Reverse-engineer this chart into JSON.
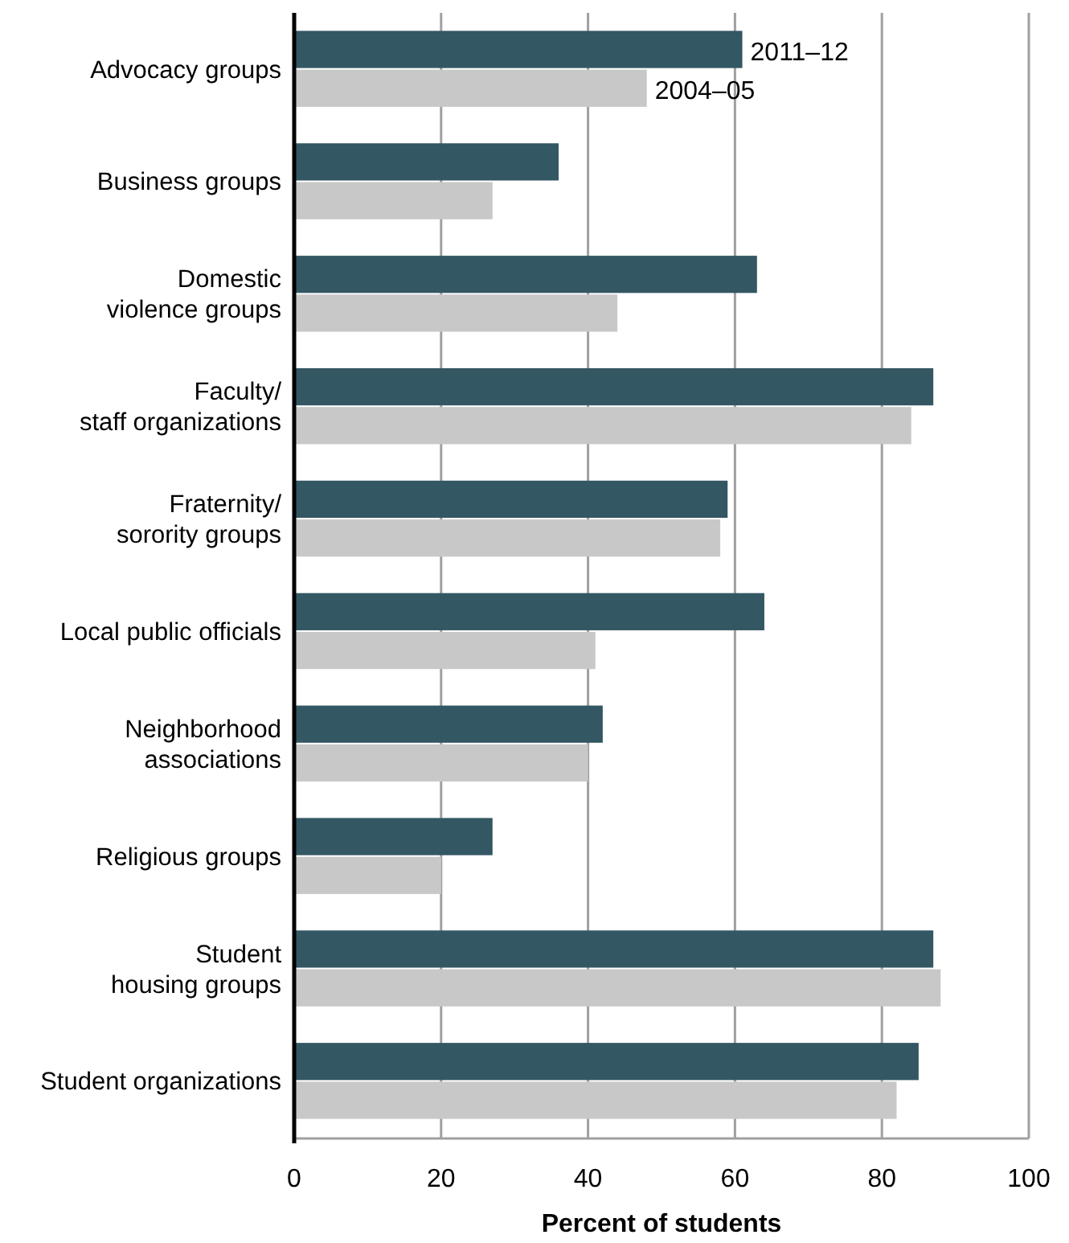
{
  "chart_data": {
    "type": "bar",
    "orientation": "horizontal",
    "xlabel": "Percent of students",
    "categories": [
      "Advocacy groups",
      "Business groups",
      "Domestic\nviolence groups",
      "Faculty/\nstaff organizations",
      "Fraternity/\nsorority groups",
      "Local public officials",
      "Neighborhood\nassociations",
      "Religious groups",
      "Student\nhousing groups",
      "Student organizations"
    ],
    "series": [
      {
        "name": "2011–12",
        "color": "#335763",
        "values": [
          61,
          36,
          63,
          87,
          59,
          64,
          42,
          27,
          87,
          85
        ]
      },
      {
        "name": "2004–05",
        "color": "#c8c8c8",
        "values": [
          48,
          27,
          44,
          84,
          58,
          41,
          40,
          20,
          88,
          82
        ]
      }
    ],
    "xlim": [
      0,
      100
    ],
    "xticks": [
      0,
      20,
      40,
      60,
      80,
      100
    ],
    "grid": "x",
    "legend": false
  }
}
